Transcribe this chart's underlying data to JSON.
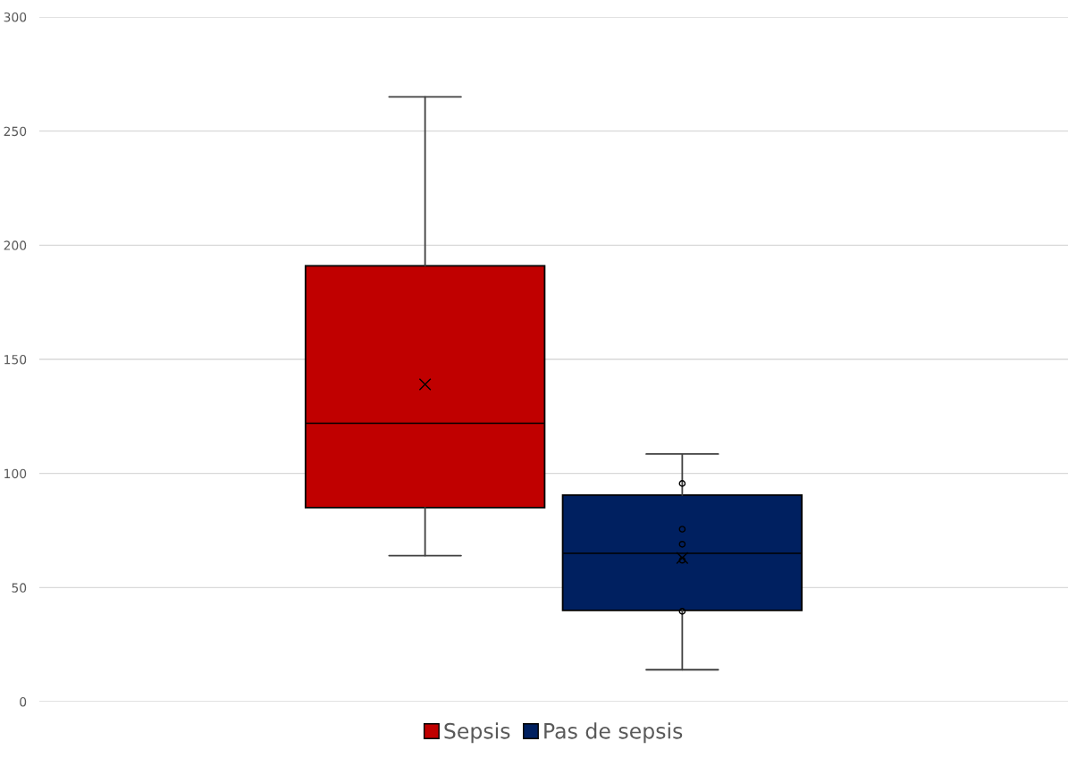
{
  "chart_data": {
    "type": "box",
    "categories": [
      null
    ],
    "series": [
      {
        "name": "Sepsis",
        "color": "#c00000",
        "boxes": [
          {
            "low": 64,
            "q1": 85,
            "median": 122,
            "q3": 191,
            "high": 265,
            "mean": 139
          }
        ]
      },
      {
        "name": "Pas de sepsis",
        "color": "#002060",
        "boxes": [
          {
            "low": 14,
            "q1": 40,
            "median": 65,
            "q3": 90.5,
            "high": 108.5,
            "mean": 63,
            "outliers": [
              95.6,
              75.6,
              69,
              62,
              39.6
            ]
          }
        ]
      }
    ],
    "ylim": [
      0,
      300
    ],
    "yticks": [
      0,
      50,
      100,
      150,
      200,
      250,
      300
    ],
    "grid": "y",
    "legend": "bottom"
  }
}
